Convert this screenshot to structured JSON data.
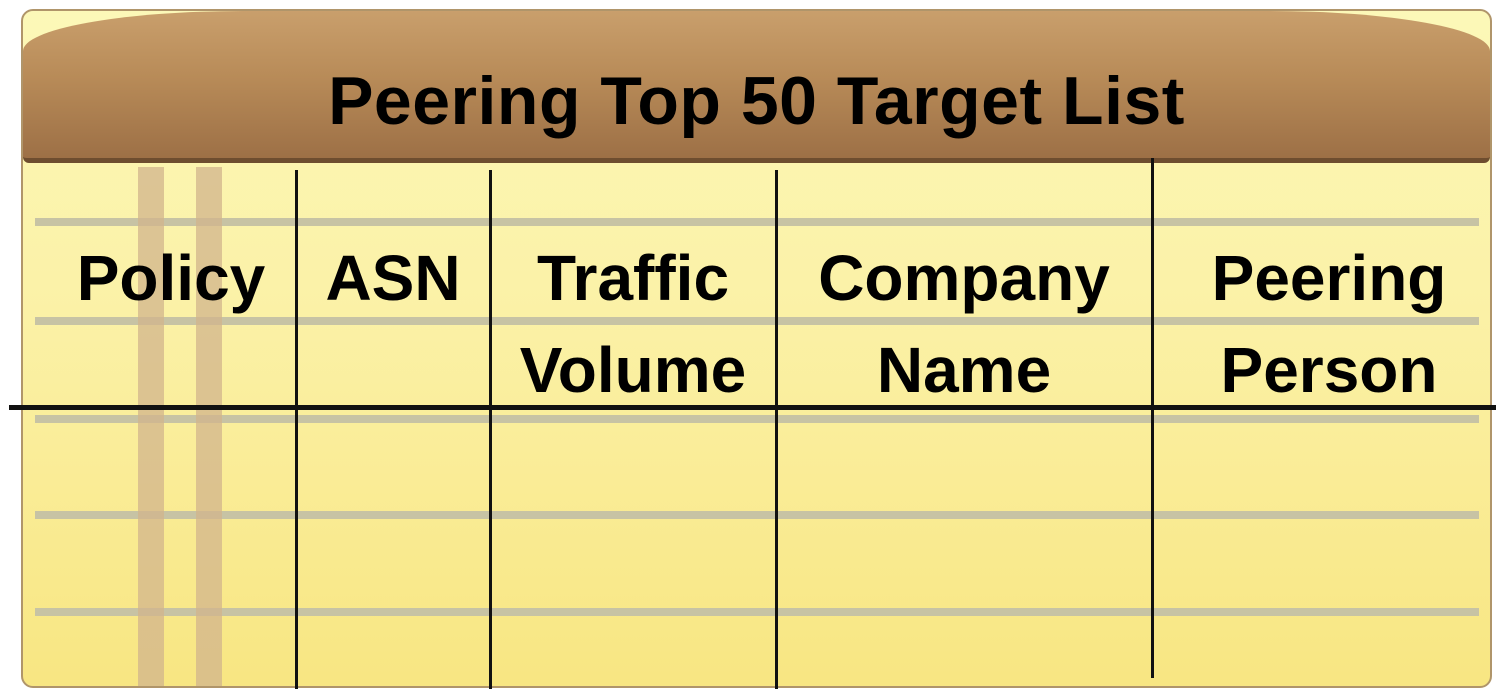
{
  "title": "Peering Top 50 Target List",
  "columns": [
    {
      "line1": "Policy",
      "line2": ""
    },
    {
      "line1": "ASN",
      "line2": ""
    },
    {
      "line1": "Traffic",
      "line2": "Volume"
    },
    {
      "line1": "Company",
      "line2": "Name"
    },
    {
      "line1": "Peering",
      "line2": "Person"
    }
  ],
  "colors": {
    "paper_top": "#fcf8b8",
    "paper_bottom": "#f8e682",
    "header": "#b88b58",
    "rule": "#c7c3a4",
    "margin": "#d2b48c",
    "ink": "#000000"
  }
}
